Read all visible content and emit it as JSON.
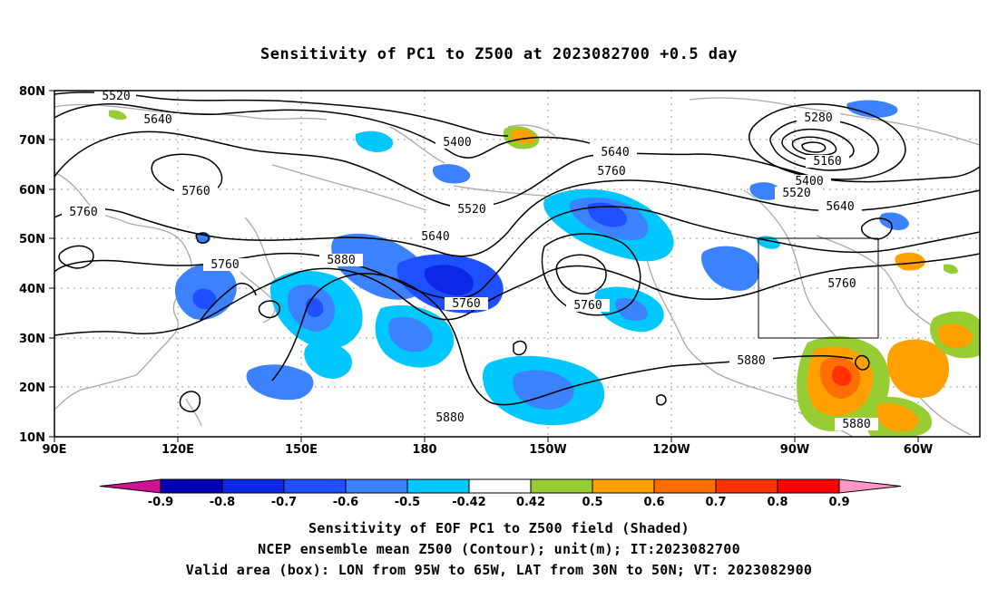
{
  "title": "Sensitivity of PC1 to Z500 at 2023082700 +0.5 day",
  "lat_labels": [
    "80N",
    "70N",
    "60N",
    "50N",
    "40N",
    "30N",
    "20N",
    "10N"
  ],
  "lon_labels": [
    "90E",
    "120E",
    "150E",
    "180",
    "150W",
    "120W",
    "90W",
    "60W"
  ],
  "contour_labels": [
    "5520",
    "5640",
    "5760",
    "5760",
    "5400",
    "5520",
    "5640",
    "5760",
    "5640",
    "5880",
    "5760",
    "5760",
    "5760",
    "5880",
    "5880",
    "5280",
    "5160",
    "5400",
    "5520",
    "5640",
    "5760",
    "5880"
  ],
  "colorbar": {
    "labels": [
      "-0.9",
      "-0.8",
      "-0.7",
      "-0.6",
      "-0.5",
      "-0.42",
      "0.42",
      "0.5",
      "0.6",
      "0.7",
      "0.8",
      "0.9"
    ],
    "colors": [
      "#cc1493",
      "#0000b4",
      "#0a28e6",
      "#1e50ff",
      "#3c82ff",
      "#00c8ff",
      "#ffffff",
      "#96cd32",
      "#ffa000",
      "#ff6e00",
      "#ff3200",
      "#ff0000",
      "#ff96c8"
    ]
  },
  "captions": [
    "Sensitivity of EOF PC1 to Z500 field (Shaded)",
    "NCEP ensemble mean Z500 (Contour); unit(m); IT:2023082700",
    "Valid area (box): LON from 95W to 65W, LAT from 30N to 50N; VT: 2023082900"
  ]
}
